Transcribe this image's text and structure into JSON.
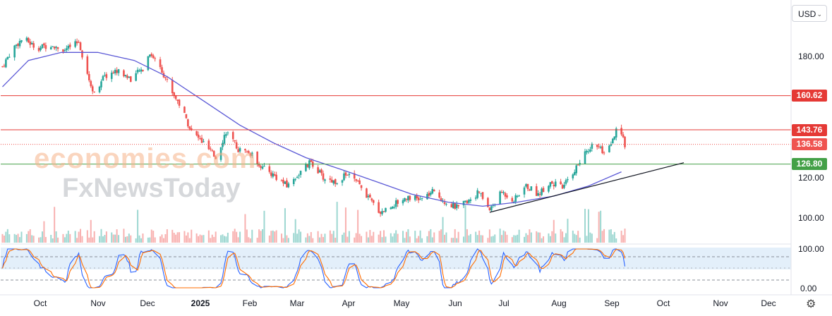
{
  "toolbar": {
    "currency": "USD"
  },
  "watermark": {
    "line1": "economies.com",
    "line2": "FxNewsToday"
  },
  "icons": {
    "currency_chevron": "chevron-down-icon",
    "settings": "gear-icon"
  },
  "colors": {
    "up": "#26a69a",
    "down": "#ef5350",
    "ma": "#5b59d6",
    "resistance": "#e53935",
    "support": "#43a047",
    "trend": "#131722",
    "stoch_k": "#2962ff",
    "stoch_d": "#ff6d00"
  },
  "chart_data": {
    "type": "candlestick",
    "x_ticks": [
      "Oct",
      "Nov",
      "Dec",
      "2025",
      "Feb",
      "Mar",
      "Apr",
      "May",
      "Jun",
      "Jul",
      "Aug",
      "Sep",
      "Oct",
      "Nov",
      "Dec"
    ],
    "y_ticks": [
      "180.00",
      "120.00",
      "100.00"
    ],
    "ylim": [
      92,
      200
    ],
    "levels": [
      {
        "label": "160.62",
        "value": 160.62,
        "kind": "resistance"
      },
      {
        "label": "143.76",
        "value": 143.76,
        "kind": "resistance"
      },
      {
        "label": "126.80",
        "value": 126.8,
        "kind": "support"
      }
    ],
    "last_price": {
      "label": "136.58",
      "value": 136.58
    },
    "trendline": {
      "start": {
        "date": "2025-06-24",
        "value": 103
      },
      "end": {
        "date": "2025-10-14",
        "value": 127.5
      }
    },
    "price_path": [
      [
        "2024-09-16",
        175
      ],
      [
        "2024-09-22",
        184
      ],
      [
        "2024-09-28",
        189
      ],
      [
        "2024-10-06",
        184
      ],
      [
        "2024-10-14",
        186
      ],
      [
        "2024-10-22",
        183
      ],
      [
        "2024-10-30",
        187
      ],
      [
        "2024-11-04",
        172
      ],
      [
        "2024-11-07",
        162
      ],
      [
        "2024-11-14",
        170
      ],
      [
        "2024-11-21",
        173
      ],
      [
        "2024-11-29",
        169
      ],
      [
        "2024-12-06",
        174
      ],
      [
        "2024-12-10",
        182
      ],
      [
        "2024-12-16",
        175
      ],
      [
        "2024-12-22",
        164
      ],
      [
        "2024-12-28",
        155
      ],
      [
        "2025-01-03",
        143
      ],
      [
        "2025-01-10",
        137
      ],
      [
        "2025-01-17",
        130
      ],
      [
        "2025-01-23",
        143
      ],
      [
        "2025-01-30",
        134
      ],
      [
        "2025-02-06",
        132
      ],
      [
        "2025-02-13",
        125
      ],
      [
        "2025-02-20",
        121
      ],
      [
        "2025-02-27",
        116
      ],
      [
        "2025-03-06",
        122
      ],
      [
        "2025-03-13",
        128
      ],
      [
        "2025-03-20",
        120
      ],
      [
        "2025-03-27",
        118
      ],
      [
        "2025-04-03",
        122
      ],
      [
        "2025-04-09",
        117
      ],
      [
        "2025-04-16",
        109
      ],
      [
        "2025-04-22",
        103
      ],
      [
        "2025-04-30",
        107
      ],
      [
        "2025-05-08",
        111
      ],
      [
        "2025-05-15",
        109
      ],
      [
        "2025-05-22",
        113
      ],
      [
        "2025-05-30",
        108
      ],
      [
        "2025-06-06",
        105
      ],
      [
        "2025-06-13",
        110
      ],
      [
        "2025-06-18",
        113
      ],
      [
        "2025-06-24",
        104
      ],
      [
        "2025-07-01",
        113
      ],
      [
        "2025-07-08",
        109
      ],
      [
        "2025-07-15",
        116
      ],
      [
        "2025-07-22",
        112
      ],
      [
        "2025-07-29",
        118
      ],
      [
        "2025-08-05",
        115
      ],
      [
        "2025-08-12",
        124
      ],
      [
        "2025-08-19",
        133
      ],
      [
        "2025-08-24",
        138
      ],
      [
        "2025-08-29",
        131
      ],
      [
        "2025-09-02",
        136
      ],
      [
        "2025-09-05",
        143
      ],
      [
        "2025-09-08",
        141
      ],
      [
        "2025-09-10",
        136.58
      ]
    ],
    "ma_path": [
      [
        "2024-09-16",
        165
      ],
      [
        "2024-10-01",
        178
      ],
      [
        "2024-10-20",
        182
      ],
      [
        "2024-11-10",
        182
      ],
      [
        "2024-12-01",
        178
      ],
      [
        "2024-12-20",
        170
      ],
      [
        "2025-01-10",
        158
      ],
      [
        "2025-01-31",
        146
      ],
      [
        "2025-02-20",
        137
      ],
      [
        "2025-03-10",
        130
      ],
      [
        "2025-03-31",
        124
      ],
      [
        "2025-04-20",
        118
      ],
      [
        "2025-05-10",
        112
      ],
      [
        "2025-05-31",
        108
      ],
      [
        "2025-06-20",
        106
      ],
      [
        "2025-07-10",
        108
      ],
      [
        "2025-07-31",
        111
      ],
      [
        "2025-08-20",
        116
      ],
      [
        "2025-09-08",
        123
      ]
    ],
    "stochastic": {
      "ylim": [
        0,
        100
      ],
      "y_ticks": [
        "100.00",
        "0.00"
      ],
      "bands": [
        20,
        80
      ]
    }
  }
}
